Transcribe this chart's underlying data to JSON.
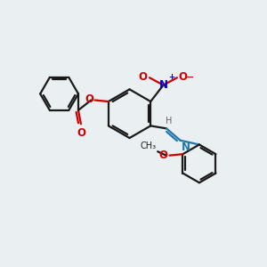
{
  "bg": "#eaeff1",
  "bc": "#1a1a1a",
  "oc": "#cc0000",
  "nc": "#0000cc",
  "nic": "#2277aa",
  "hc": "#666666",
  "lw": 1.6,
  "xlim": [
    0,
    10
  ],
  "ylim": [
    0,
    10
  ]
}
